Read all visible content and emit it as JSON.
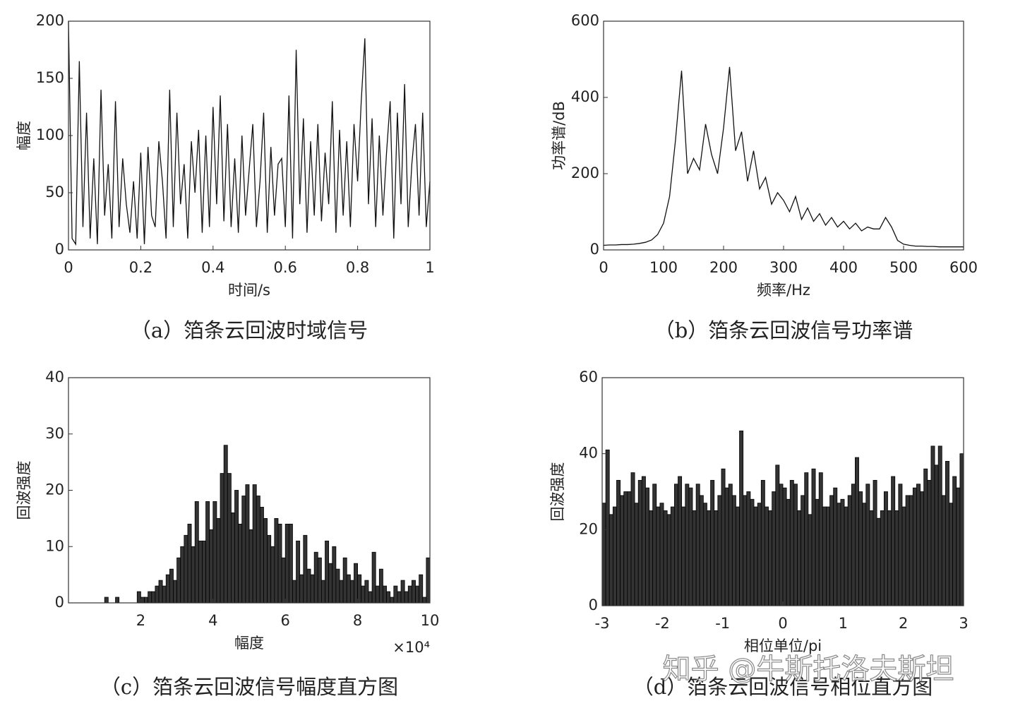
{
  "watermark": "知乎 @牛斯托洛夫斯坦",
  "chart_data": [
    {
      "type": "line",
      "caption": "（a）箔条云回波时域信号",
      "x_label": "时间/s",
      "y_label": "幅度",
      "color": "#111111",
      "x": [
        0,
        0.01,
        0.02,
        0.03,
        0.04,
        0.05,
        0.06,
        0.07,
        0.08,
        0.09,
        0.1,
        0.11,
        0.12,
        0.13,
        0.14,
        0.15,
        0.16,
        0.17,
        0.18,
        0.19,
        0.2,
        0.21,
        0.22,
        0.23,
        0.24,
        0.25,
        0.26,
        0.27,
        0.28,
        0.29,
        0.3,
        0.31,
        0.32,
        0.33,
        0.34,
        0.35,
        0.36,
        0.37,
        0.38,
        0.39,
        0.4,
        0.41,
        0.42,
        0.43,
        0.44,
        0.45,
        0.46,
        0.47,
        0.48,
        0.49,
        0.5,
        0.51,
        0.52,
        0.53,
        0.54,
        0.55,
        0.56,
        0.57,
        0.58,
        0.59,
        0.6,
        0.61,
        0.62,
        0.63,
        0.64,
        0.65,
        0.66,
        0.67,
        0.68,
        0.69,
        0.7,
        0.71,
        0.72,
        0.73,
        0.74,
        0.75,
        0.76,
        0.77,
        0.78,
        0.79,
        0.8,
        0.81,
        0.82,
        0.83,
        0.84,
        0.85,
        0.86,
        0.87,
        0.88,
        0.89,
        0.9,
        0.91,
        0.92,
        0.93,
        0.94,
        0.95,
        0.96,
        0.97,
        0.98,
        0.99,
        1
      ],
      "values": [
        200,
        10,
        5,
        165,
        20,
        120,
        10,
        80,
        5,
        140,
        30,
        75,
        10,
        130,
        20,
        80,
        40,
        15,
        60,
        10,
        85,
        5,
        90,
        30,
        20,
        95,
        60,
        10,
        140,
        20,
        120,
        40,
        75,
        10,
        95,
        50,
        105,
        15,
        100,
        20,
        125,
        40,
        135,
        25,
        110,
        20,
        80,
        15,
        100,
        30,
        70,
        110,
        20,
        60,
        120,
        15,
        90,
        30,
        75,
        80,
        20,
        135,
        10,
        175,
        40,
        115,
        15,
        95,
        30,
        110,
        25,
        85,
        40,
        130,
        15,
        105,
        30,
        95,
        20,
        110,
        60,
        130,
        185,
        40,
        115,
        20,
        100,
        30,
        85,
        130,
        10,
        120,
        40,
        145,
        20,
        75,
        110,
        30,
        120,
        20,
        60
      ],
      "xlim": [
        0,
        1
      ],
      "xticks": [
        0,
        0.2,
        0.4,
        0.6,
        0.8,
        1
      ],
      "ylim": [
        0,
        200
      ],
      "yticks": [
        0,
        50,
        100,
        150,
        200
      ]
    },
    {
      "type": "line",
      "caption": "（b）箔条云回波信号功率谱",
      "x_label": "频率/Hz",
      "y_label": "功率谱/dB",
      "color": "#111111",
      "x": [
        0,
        10,
        20,
        30,
        40,
        50,
        60,
        70,
        80,
        90,
        100,
        110,
        120,
        130,
        140,
        150,
        160,
        170,
        180,
        190,
        200,
        210,
        220,
        230,
        240,
        250,
        260,
        270,
        280,
        290,
        300,
        310,
        320,
        330,
        340,
        350,
        360,
        370,
        380,
        390,
        400,
        410,
        420,
        430,
        440,
        450,
        460,
        470,
        480,
        490,
        500,
        510,
        520,
        530,
        540,
        550,
        560,
        570,
        580,
        590,
        600
      ],
      "values": [
        12,
        13,
        13,
        14,
        14,
        15,
        17,
        20,
        26,
        40,
        70,
        140,
        290,
        470,
        200,
        240,
        210,
        330,
        250,
        200,
        320,
        480,
        260,
        310,
        180,
        260,
        160,
        190,
        120,
        150,
        130,
        100,
        140,
        80,
        110,
        75,
        95,
        65,
        85,
        60,
        75,
        55,
        70,
        50,
        60,
        55,
        55,
        85,
        60,
        25,
        15,
        12,
        10,
        10,
        9,
        9,
        8,
        8,
        8,
        8,
        8
      ],
      "xlim": [
        0,
        600
      ],
      "xticks": [
        0,
        100,
        200,
        300,
        400,
        500,
        600
      ],
      "ylim": [
        0,
        600
      ],
      "yticks": [
        0,
        200,
        400,
        600
      ]
    },
    {
      "type": "histogram",
      "caption": "（c）箔条云回波信号幅度直方图",
      "x_label": "幅度",
      "y_label": "回波强度",
      "x_multiplier": "×10⁴",
      "color": "#333333",
      "bins": [
        10000,
        11000,
        12000,
        13000,
        14000,
        15000,
        16000,
        17000,
        18000,
        19000,
        20000,
        21000,
        22000,
        23000,
        24000,
        25000,
        26000,
        27000,
        28000,
        29000,
        30000,
        31000,
        32000,
        33000,
        34000,
        35000,
        36000,
        37000,
        38000,
        39000,
        40000,
        41000,
        42000,
        43000,
        44000,
        45000,
        46000,
        47000,
        48000,
        49000,
        50000,
        51000,
        52000,
        53000,
        54000,
        55000,
        56000,
        57000,
        58000,
        59000,
        60000,
        61000,
        62000,
        63000,
        64000,
        65000,
        66000,
        67000,
        68000,
        69000,
        70000,
        71000,
        72000,
        73000,
        74000,
        75000,
        76000,
        77000,
        78000,
        79000,
        80000,
        81000,
        82000,
        83000,
        84000,
        85000,
        86000,
        87000,
        88000,
        89000,
        90000,
        91000,
        92000,
        93000,
        94000,
        95000,
        96000,
        97000,
        98000,
        99000,
        100000
      ],
      "values": [
        1,
        0,
        0,
        1,
        0,
        0,
        0,
        0,
        0,
        2,
        1,
        1,
        2,
        2,
        3,
        4,
        3,
        5,
        6,
        4,
        8,
        10,
        12,
        14,
        10,
        18,
        11,
        11,
        18,
        13,
        18,
        15,
        23,
        28,
        23,
        16,
        20,
        14,
        19,
        21,
        13,
        21,
        19,
        17,
        15,
        12,
        10,
        15,
        14,
        8,
        14,
        14,
        4,
        11,
        5,
        12,
        6,
        5,
        9,
        8,
        4,
        11,
        7,
        10,
        6,
        4,
        8,
        5,
        4,
        7,
        5,
        3,
        4,
        2,
        9,
        3,
        6,
        3,
        2,
        1,
        3,
        2,
        4,
        2,
        3,
        4,
        3,
        5,
        1,
        8
      ],
      "xlim": [
        0,
        100000
      ],
      "xticks": [
        {
          "value": 20000,
          "label": "2"
        },
        {
          "value": 40000,
          "label": "4"
        },
        {
          "value": 60000,
          "label": "6"
        },
        {
          "value": 80000,
          "label": "8"
        },
        {
          "value": 100000,
          "label": "10"
        }
      ],
      "ylim": [
        0,
        40
      ],
      "yticks": [
        0,
        10,
        20,
        30,
        40
      ]
    },
    {
      "type": "histogram",
      "caption": "（d）箔条云回波信号相位直方图",
      "x_label": "相位单位/pi",
      "y_label": "回波强度",
      "color": "#333333",
      "bins": [
        -3,
        -2.94,
        -2.88,
        -2.82,
        -2.76,
        -2.7,
        -2.64,
        -2.58,
        -2.52,
        -2.46,
        -2.4,
        -2.34,
        -2.28,
        -2.22,
        -2.16,
        -2.1,
        -2.04,
        -1.98,
        -1.92,
        -1.86,
        -1.8,
        -1.74,
        -1.68,
        -1.62,
        -1.56,
        -1.5,
        -1.44,
        -1.38,
        -1.32,
        -1.26,
        -1.2,
        -1.14,
        -1.08,
        -1.02,
        -0.96,
        -0.9,
        -0.84,
        -0.78,
        -0.72,
        -0.66,
        -0.6,
        -0.54,
        -0.48,
        -0.42,
        -0.36,
        -0.3,
        -0.24,
        -0.18,
        -0.12,
        -0.06,
        0,
        0.06,
        0.12,
        0.18,
        0.24,
        0.3,
        0.36,
        0.42,
        0.48,
        0.54,
        0.6,
        0.66,
        0.72,
        0.78,
        0.84,
        0.9,
        0.96,
        1.02,
        1.08,
        1.14,
        1.2,
        1.26,
        1.32,
        1.38,
        1.44,
        1.5,
        1.56,
        1.62,
        1.68,
        1.74,
        1.8,
        1.86,
        1.92,
        1.98,
        2.04,
        2.1,
        2.16,
        2.22,
        2.28,
        2.34,
        2.4,
        2.46,
        2.52,
        2.58,
        2.64,
        2.7,
        2.76,
        2.82,
        2.88,
        2.94,
        3
      ],
      "values": [
        27,
        41,
        24,
        26,
        33,
        29,
        30,
        30,
        35,
        27,
        33,
        34,
        31,
        25,
        32,
        26,
        27,
        25,
        24,
        26,
        32,
        34,
        26,
        32,
        31,
        25,
        32,
        29,
        27,
        25,
        33,
        25,
        29,
        36,
        31,
        32,
        29,
        26,
        46,
        29,
        30,
        28,
        26,
        27,
        33,
        26,
        25,
        30,
        37,
        32,
        31,
        28,
        33,
        32,
        25,
        29,
        35,
        24,
        36,
        28,
        35,
        26,
        26,
        29,
        31,
        27,
        28,
        26,
        29,
        32,
        39,
        30,
        27,
        32,
        25,
        33,
        23,
        25,
        30,
        25,
        34,
        25,
        32,
        26,
        29,
        29,
        31,
        32,
        30,
        36,
        33,
        42,
        37,
        42,
        29,
        38,
        27,
        34,
        31,
        40
      ],
      "xlim": [
        -3,
        3
      ],
      "xticks": [
        -3,
        -2,
        -1,
        0,
        1,
        2,
        3
      ],
      "ylim": [
        0,
        60
      ],
      "yticks": [
        0,
        20,
        40,
        60
      ]
    }
  ]
}
